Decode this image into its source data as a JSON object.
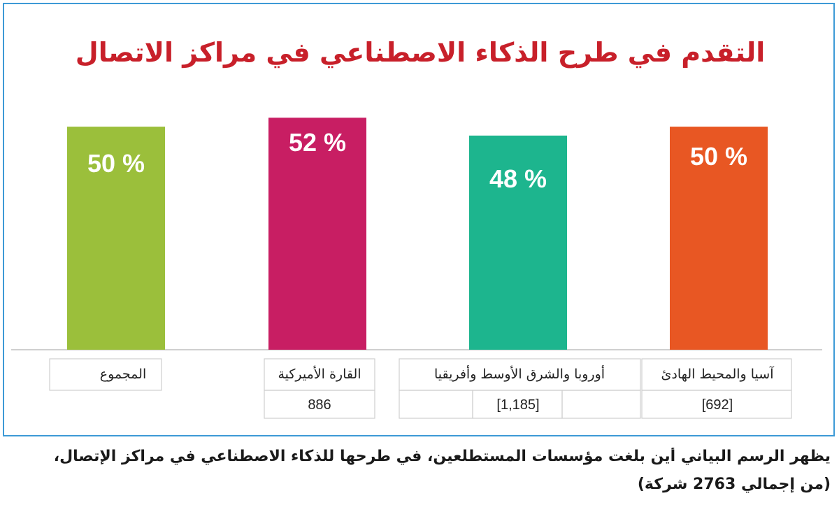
{
  "chart_data": {
    "type": "bar",
    "title": "التقدم في طرح الذكاء الاصطناعي في مراكز الاتصال",
    "categories": [
      "المجموع",
      "القارة الأميركية",
      "أوروبا والشرق الأوسط وأفريقيا",
      "آسيا والمحيط الهادئ"
    ],
    "values": [
      50,
      52,
      48,
      50
    ],
    "value_labels": [
      "50 %",
      "52 %",
      "48 %",
      "50 %"
    ],
    "counts": [
      "",
      "886",
      "[1,185]",
      "[692]"
    ],
    "colors": [
      "#9bbf3b",
      "#c81e63",
      "#1db58e",
      "#e85723"
    ],
    "ylim": [
      0,
      55.5
    ],
    "grid": false,
    "legend": "none"
  },
  "caption": {
    "line1": "يظهر الرسم البياني أين بلغت مؤسسات المستطلعين، في طرحها للذكاء الاصطناعي في مراكز الإتصال،",
    "line2": "(من إجمالي 2763 شركة)"
  }
}
